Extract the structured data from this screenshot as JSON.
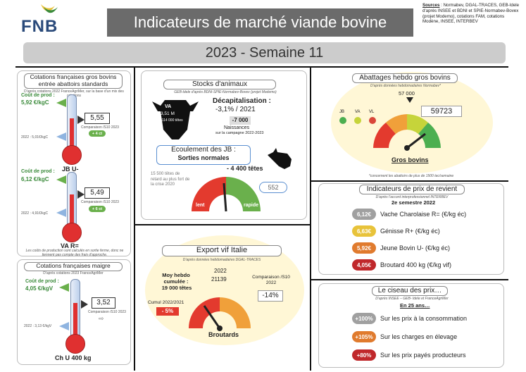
{
  "header": {
    "logo": "FNB",
    "title": "Indicateurs de marché viande bovine",
    "sources_label": "Sources",
    "sources_text": " : Normabev, DGAL-TRACES, GEB-Idele d'après INSEE et BDNI et SPIE-Normabev-Bovex (projet Modemo), cotations FAM, cotations Modène, INSEE, INTERBEV",
    "week": "2023 - Semaine 11"
  },
  "cotations": {
    "title": "Cotations françaises gros bovins entrée abattoirs standards",
    "subtitle": "D'après cotations 2022 FranceAgriMer, sur la base d'un mix des cotations",
    "jb": {
      "cost_label": "Coût de prod :",
      "cost_value": "5,92 €/kgC",
      "value": "5,55",
      "comparison": "Comparaison /S10 2023",
      "delta": "+ 4 ct",
      "ref_2022": "2022 : 5,01€/kgC",
      "name": "JB U-"
    },
    "va": {
      "cost_label": "Coût de prod :",
      "cost_value": "6,12 €/kgC",
      "value": "5,49",
      "comparison": "Comparaison /S10 2023",
      "delta": "+ 6 ct",
      "ref_2022": "2022 : 4,91€/kgC",
      "name": "VA R="
    },
    "note": "Les coûts de production sont calculés en sortie ferme, donc ne tiennent pas compte des frais d'approche."
  },
  "maigre": {
    "title": "Cotations françaises maigre",
    "subtitle": "D'après cotations 2023 FranceAgriMer",
    "cost_label": "Coût de prod :",
    "cost_value": "4,05 €/kgV",
    "value": "3,52",
    "comparison": "Comparaison /S10 2023",
    "ref_2022": "2022 : 3,13 €/kgV",
    "name": "Ch U 400 kg"
  },
  "stocks": {
    "title": "Stocks d'animaux",
    "subtitle": "GEB-Idele d'après BDNI-SPIE-Normabev-Bovex (projet Modemo)",
    "va_label": "VA",
    "va_value": "3,51 M",
    "va_delta": "-114 000 têtes",
    "decap_label": "Décapitalisation :",
    "decap_value": "-3,1% / 2021",
    "naissances_value": "-7 000",
    "naissances_label": "Naissances",
    "naissances_period": "sur la campagne 2022-2023",
    "ecoulement_label": "Ecoulement des JB :",
    "ecoulement_value": "Sorties normales",
    "jb_delta": "- 4 400 têtes",
    "retard_text": "15 500 têtes de retard au plus fort de la crise 2020",
    "gauge_left": "lent",
    "gauge_right": "rapide",
    "gauge_value": "552"
  },
  "abattages": {
    "title": "Abattages hebdo gros bovins",
    "subtitle": "D'après données hebdomadaires Normabev*",
    "top_value": "57 000",
    "legend": [
      "JB",
      "VA",
      "VL"
    ],
    "value": "59723",
    "label": "Gros bovins",
    "footnote": "*concernent les abattoirs de plus de 1500 tec/semaine",
    "colors": [
      "#4caf50",
      "#c6d43a",
      "#d9473a"
    ]
  },
  "prix": {
    "title": "Indicateurs de prix de revient",
    "subtitle": "D'après l'accord interprofessionnel INTERBEV",
    "period": "2e semestre 2022",
    "items": [
      {
        "value": "6,12€",
        "label": "Vache Charolaise R= (€/kg éc)",
        "color": "#a0a0a0"
      },
      {
        "value": "6,63€",
        "label": "Génisse R+ (€/kg éc)",
        "color": "#e8c33a"
      },
      {
        "value": "5,92€",
        "label": "Jeune Bovin U- (€/kg éc)",
        "color": "#e07b2e"
      },
      {
        "value": "4,05€",
        "label": "Broutard 400 kg (€/kg vif)",
        "color": "#c0282b"
      }
    ]
  },
  "export": {
    "title": "Export vif Italie",
    "subtitle": "D'après données hebdomadaires DGAL-TRACES",
    "moy_label": "Moy hebdo cumulée :",
    "moy_value": "19 000 têtes",
    "year": "2022",
    "year_value": "21139",
    "comparison_label": "Comparaison /S10 2022",
    "comparison_value": "-14%",
    "cumul_label": "Cumul 2022/2021",
    "cumul_value": "- 5%",
    "gauge_label": "Broutards"
  },
  "ciseau": {
    "title": "Le ciseau des prix…",
    "subtitle": "D'après INSEE – GEB- Idele et FranceAgriMer",
    "period": "En 25 ans…",
    "items": [
      {
        "value": "+100%",
        "label": "Sur les prix à la consommation",
        "color": "#a0a0a0"
      },
      {
        "value": "+105%",
        "label": "Sur les charges en élevage",
        "color": "#e07b2e"
      },
      {
        "value": "+80%",
        "label": "Sur les prix payés producteurs",
        "color": "#c0282b"
      }
    ]
  }
}
